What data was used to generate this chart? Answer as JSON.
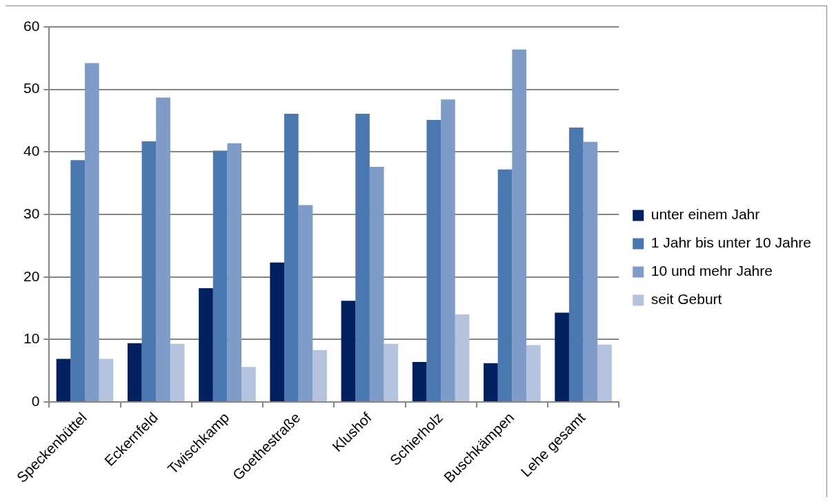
{
  "chart_data": {
    "type": "bar",
    "categories": [
      "Speckenbüttel",
      "Eckernfeld",
      "Twischkamp",
      "Goethestraße",
      "Klushof",
      "Schierholz",
      "Buschkämpen",
      "Lehe gesamt"
    ],
    "series": [
      {
        "name": "unter einem Jahr",
        "color": "#002060",
        "values": [
          6.9,
          9.4,
          18.2,
          22.3,
          16.2,
          6.4,
          6.2,
          14.3
        ]
      },
      {
        "name": "1 Jahr bis unter 10 Jahre",
        "color": "#4a78b0",
        "values": [
          38.7,
          41.7,
          40.2,
          46.1,
          46.1,
          45.1,
          37.2,
          43.9
        ]
      },
      {
        "name": "10 und mehr Jahre",
        "color": "#7f9cc8",
        "values": [
          54.2,
          48.7,
          41.4,
          31.5,
          37.6,
          48.4,
          56.4,
          41.6
        ]
      },
      {
        "name": "seit Geburt",
        "color": "#b5c3de",
        "values": [
          6.9,
          9.3,
          5.6,
          8.3,
          9.3,
          14.0,
          9.1,
          9.2
        ]
      }
    ],
    "ylim": [
      0,
      60
    ],
    "yticks": [
      0,
      10,
      20,
      30,
      40,
      50,
      60
    ],
    "grid": "y",
    "legend": "right"
  }
}
